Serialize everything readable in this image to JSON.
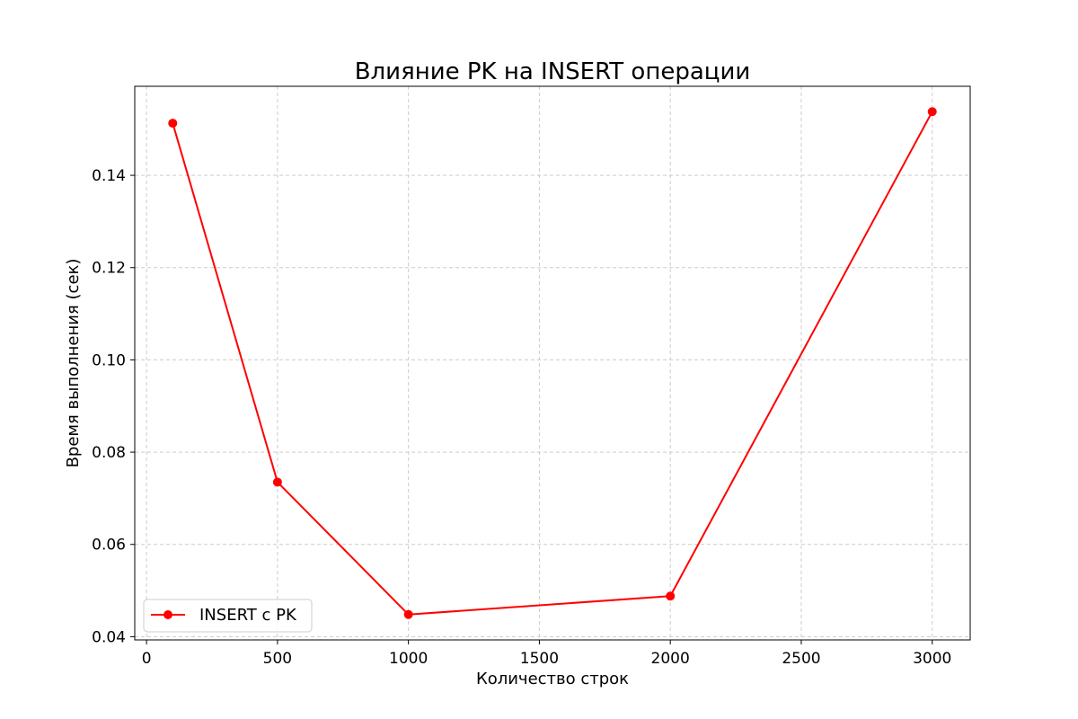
{
  "chart_data": {
    "type": "line",
    "title": "Влияние PK на INSERT операции",
    "xlabel": "Количество строк",
    "ylabel": "Время выполнения (сек)",
    "xlim": [
      -45,
      3145
    ],
    "ylim": [
      0.0393,
      0.1593
    ],
    "xticks": [
      0,
      500,
      1000,
      1500,
      2000,
      2500,
      3000
    ],
    "yticks": [
      0.04,
      0.06,
      0.08,
      0.1,
      0.12,
      0.14
    ],
    "ytick_labels": [
      "0.04",
      "0.06",
      "0.08",
      "0.10",
      "0.12",
      "0.14"
    ],
    "grid": true,
    "grid_style": "dashed",
    "legend_position": "lower-left",
    "series": [
      {
        "name": "INSERT с PK",
        "color": "#ff0000",
        "marker": "circle",
        "x": [
          100,
          500,
          1000,
          2000,
          3000
        ],
        "y": [
          0.1513,
          0.0735,
          0.0448,
          0.0488,
          0.1538
        ]
      }
    ]
  }
}
